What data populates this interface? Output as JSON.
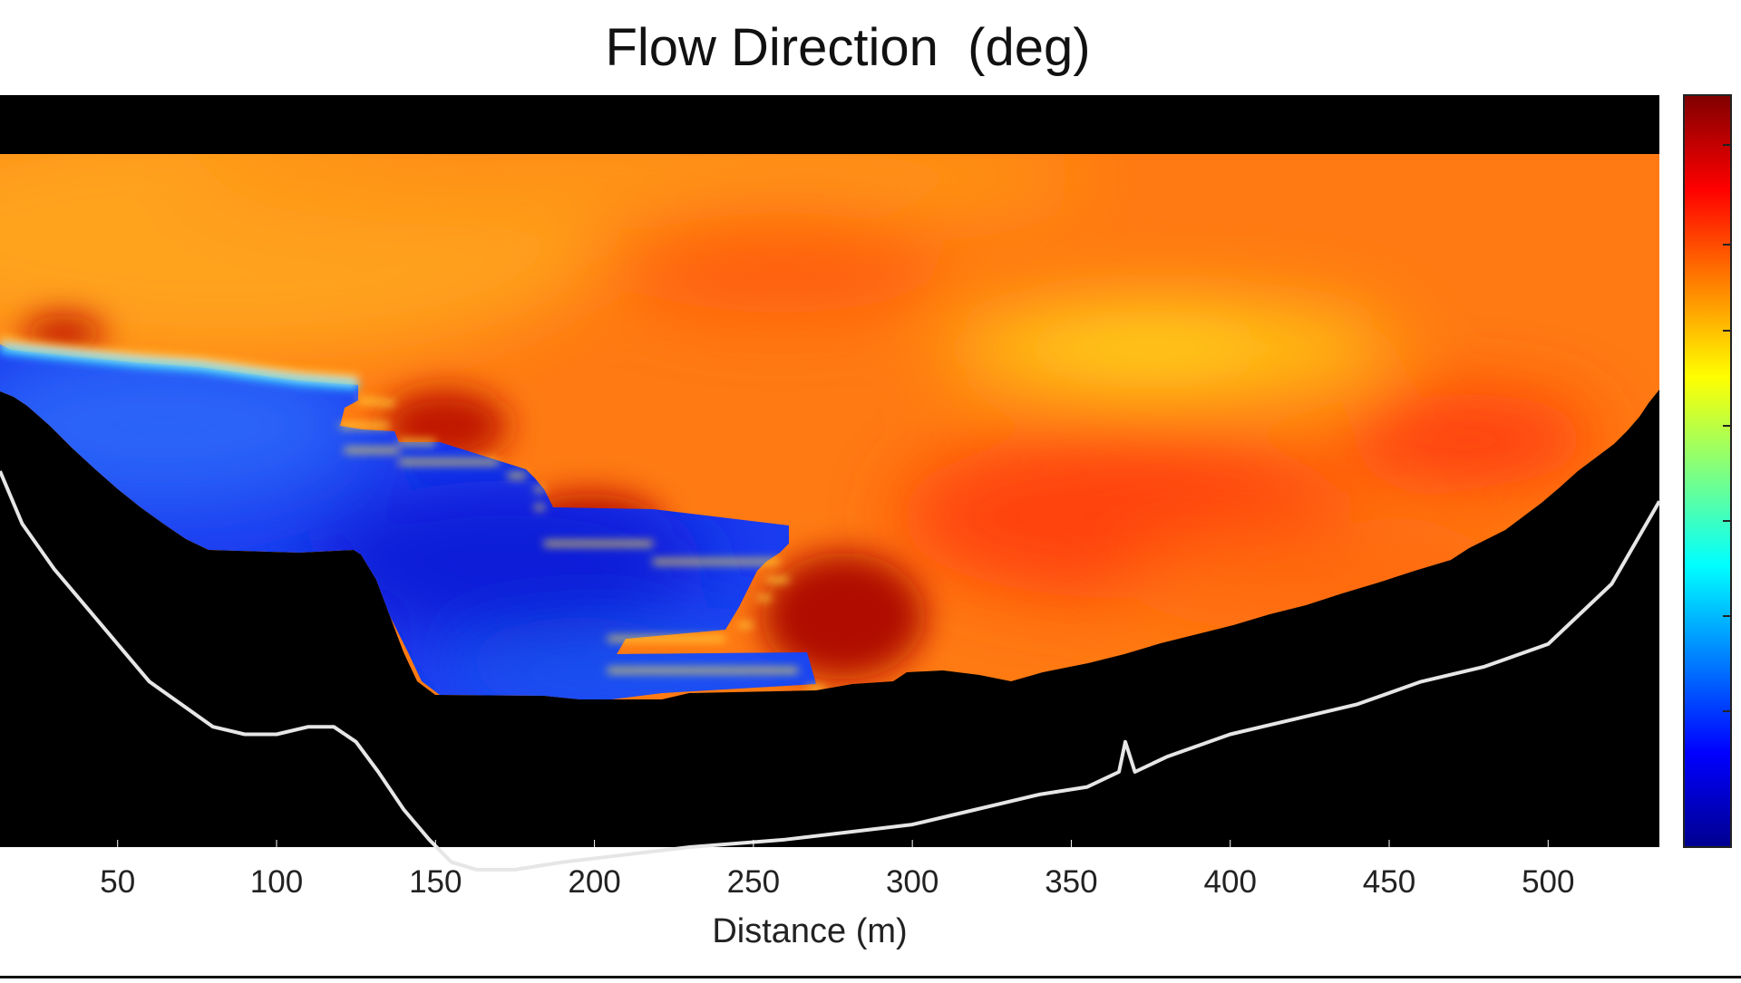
{
  "chart_data": {
    "type": "heatmap",
    "title": "Flow Direction  (deg)",
    "xlabel": "Distance (m)",
    "ylabel": "",
    "xlim": [
      13,
      535
    ],
    "xticks": [
      50,
      100,
      150,
      200,
      250,
      300,
      350,
      400,
      450,
      500
    ],
    "xtick_labels": [
      "50",
      "100",
      "150",
      "200",
      "250",
      "300",
      "350",
      "400",
      "450",
      "500"
    ],
    "colormap": "jet",
    "colorbar": true,
    "colorbar_tick_labels": [],
    "background_color": "#000000",
    "bed_line_color": "#e6e6e6",
    "regions": [
      {
        "name": "upper-orange",
        "color": "#ff9a1a"
      },
      {
        "name": "center-orange",
        "color": "#ff7a12"
      },
      {
        "name": "yellow-band",
        "color": "#ffcc12"
      },
      {
        "name": "red-core",
        "color": "#ff3a0a"
      },
      {
        "name": "dark-red-edge",
        "color": "#b00c00"
      },
      {
        "name": "blue-region",
        "color": "#1030ee"
      }
    ],
    "bed_profile": {
      "x": [
        13,
        20,
        30,
        40,
        50,
        60,
        70,
        80,
        90,
        100,
        110,
        118,
        125,
        132,
        140,
        148,
        155,
        163,
        175,
        190,
        210,
        230,
        260,
        300,
        320,
        340,
        355,
        365,
        367,
        370,
        380,
        400,
        420,
        440,
        460,
        480,
        500,
        520,
        535
      ],
      "depth": [
        0.5,
        0.57,
        0.63,
        0.68,
        0.73,
        0.78,
        0.81,
        0.84,
        0.85,
        0.85,
        0.84,
        0.84,
        0.86,
        0.9,
        0.95,
        0.99,
        1.02,
        1.03,
        1.03,
        1.02,
        1.01,
        1.0,
        0.99,
        0.97,
        0.95,
        0.93,
        0.92,
        0.9,
        0.86,
        0.9,
        0.88,
        0.85,
        0.83,
        0.81,
        0.78,
        0.76,
        0.73,
        0.65,
        0.54
      ]
    }
  }
}
